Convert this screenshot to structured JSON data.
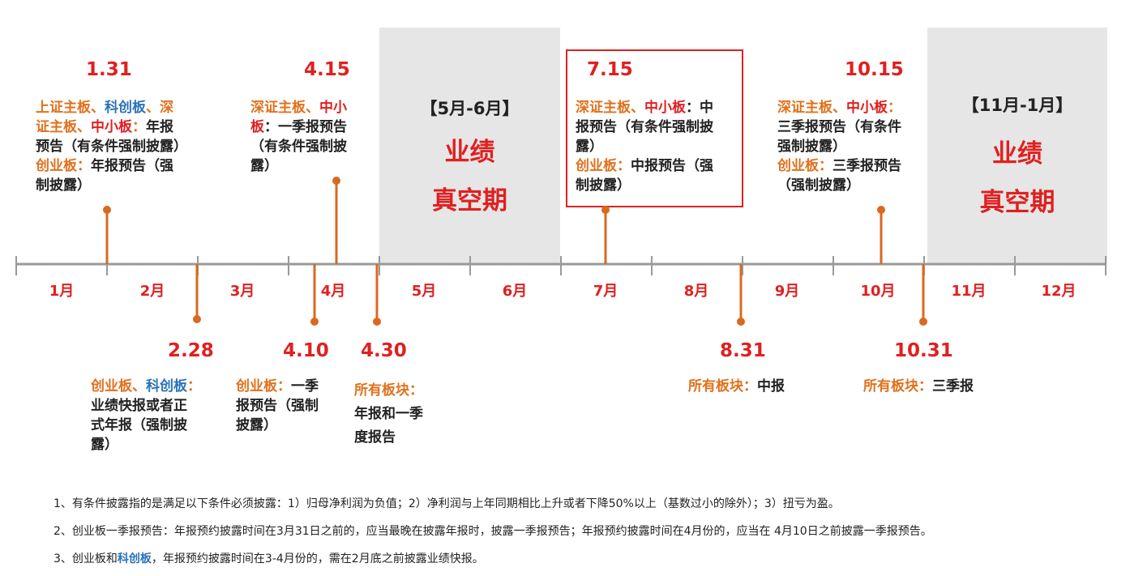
{
  "months": [
    "1月",
    "2月",
    "3月",
    "4月",
    "5月",
    "6月",
    "7月",
    "8月",
    "9月",
    "10月",
    "11月",
    "12月"
  ],
  "vacuum_periods": [
    {
      "title": "【5月-6月】",
      "line1": "业绩",
      "line2": "真空期"
    },
    {
      "title": "【11月-1月】",
      "line1": "业绩",
      "line2": "真空期"
    }
  ],
  "events_top": [
    {
      "date": "1.31",
      "parts": [
        {
          "t": "上证主板、",
          "c": "org"
        },
        {
          "t": "科创板",
          "c": "blue"
        },
        {
          "t": "、深",
          "c": "org"
        },
        {
          "t": "证主板、",
          "c": "org"
        },
        {
          "t": "中小板",
          "c": "red"
        },
        {
          "t": "：",
          "c": "org"
        },
        {
          "t": "年报",
          "c": "blk"
        },
        {
          "t": "预告（有条件强制披露）",
          "c": "blk"
        },
        {
          "t": "创业板：",
          "c": "org"
        },
        {
          "t": "年报预告（强",
          "c": "blk"
        },
        {
          "t": "制披露）",
          "c": "blk"
        }
      ]
    },
    {
      "date": "4.15",
      "parts": [
        {
          "t": "深证主板、",
          "c": "org"
        },
        {
          "t": "中小",
          "c": "red"
        },
        {
          "t": "板",
          "c": "red"
        },
        {
          "t": "：一季报预告",
          "c": "blk"
        },
        {
          "t": "（有条件强制披",
          "c": "blk"
        },
        {
          "t": "露）",
          "c": "blk"
        }
      ]
    },
    {
      "date": "7.15",
      "parts": [
        {
          "t": "深证主板、",
          "c": "org"
        },
        {
          "t": "中小板",
          "c": "red"
        },
        {
          "t": "：中",
          "c": "blk"
        },
        {
          "t": "报预告（有条件强制披",
          "c": "blk"
        },
        {
          "t": "露）",
          "c": "blk"
        },
        {
          "t": "创业板：",
          "c": "org"
        },
        {
          "t": "中报预告（强",
          "c": "blk"
        },
        {
          "t": "制披露）",
          "c": "blk"
        }
      ]
    },
    {
      "date": "10.15",
      "parts": [
        {
          "t": "深证主板、",
          "c": "org"
        },
        {
          "t": "中小板",
          "c": "red"
        },
        {
          "t": "：",
          "c": "org"
        },
        {
          "t": "三季报预告（有条件",
          "c": "blk"
        },
        {
          "t": "强制披露）",
          "c": "blk"
        },
        {
          "t": "创业板：",
          "c": "org"
        },
        {
          "t": "三季报预告",
          "c": "blk"
        },
        {
          "t": "（强制披露）",
          "c": "blk"
        }
      ]
    }
  ],
  "events_bottom": [
    {
      "date": "2.28",
      "parts": [
        {
          "t": "创业板、",
          "c": "org"
        },
        {
          "t": "科创板",
          "c": "blue"
        },
        {
          "t": "：",
          "c": "org"
        },
        {
          "t": "业绩快报或者正",
          "c": "blk"
        },
        {
          "t": "式年报（强制披",
          "c": "blk"
        },
        {
          "t": "露）",
          "c": "blk"
        }
      ]
    },
    {
      "date": "4.10",
      "parts": [
        {
          "t": "创业板：",
          "c": "org"
        },
        {
          "t": "一季",
          "c": "blk"
        },
        {
          "t": "报预告（强制",
          "c": "blk"
        },
        {
          "t": "披露）",
          "c": "blk"
        }
      ]
    },
    {
      "date": "4.30",
      "parts": [
        {
          "t": "所有板块：",
          "c": "org"
        },
        {
          "t": "年报和一季",
          "c": "blk"
        },
        {
          "t": "度报告",
          "c": "blk"
        }
      ]
    },
    {
      "date": "8.31",
      "parts": [
        {
          "t": "所有板块：",
          "c": "org"
        },
        {
          "t": "中报",
          "c": "blk"
        }
      ]
    },
    {
      "date": "10.31",
      "parts": [
        {
          "t": "所有板块：",
          "c": "org"
        },
        {
          "t": "三季报",
          "c": "blk"
        }
      ]
    }
  ],
  "notes": {
    "n1": "1、有条件披露指的是满足以下条件必须披露：1）归母净利润为负值；2）净利润与上年同期相比上升或者下降50%以上（基数过小的除外）；3）扭亏为盈。",
    "n2": "2、创业板一季报预告：年报预约披露时间在3月31日之前的，应当最晚在披露年报时，披露一季报预告；年报预约披露时间在4月份的，应当在 4月10日之前披露一季报预告。",
    "n3_pre": "3、创业板和",
    "n3_blue": "科创板",
    "n3_post": "，年报预约披露时间在3-4月份的，需在2月底之前披露业绩快报。"
  },
  "colors": {
    "accent_red": "#e02020",
    "accent_orange": "#e0711c",
    "accent_blue": "#2a73b8",
    "timeline": "#999999",
    "stem": "#d9691f",
    "shade": "#e6e6e6",
    "highlight_box": "#e02020"
  }
}
